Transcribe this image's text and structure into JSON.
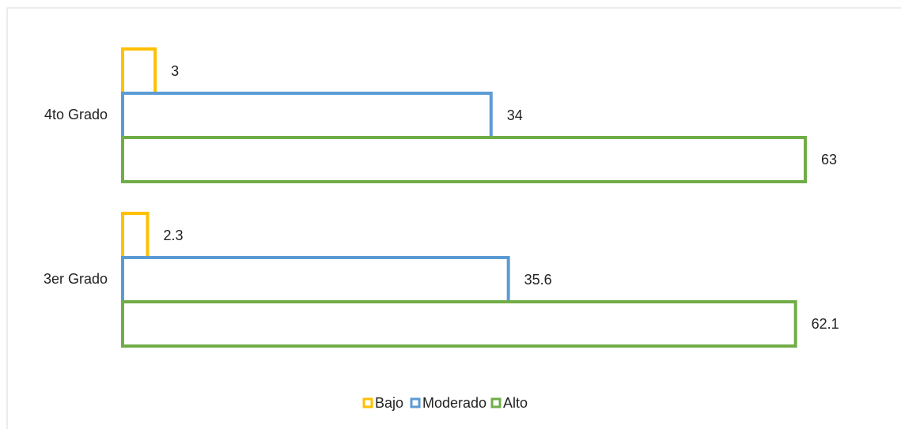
{
  "chart_data": {
    "type": "bar",
    "orientation": "horizontal",
    "categories": [
      "4to Grado",
      "3er Grado"
    ],
    "series": [
      {
        "name": "Bajo",
        "color": "#FFC000",
        "values": [
          3,
          2.3
        ]
      },
      {
        "name": "Moderado",
        "color": "#5B9BD5",
        "values": [
          34,
          35.6
        ]
      },
      {
        "name": "Alto",
        "color": "#70AD47",
        "values": [
          63,
          62.1
        ]
      }
    ],
    "legend": "bottom"
  }
}
